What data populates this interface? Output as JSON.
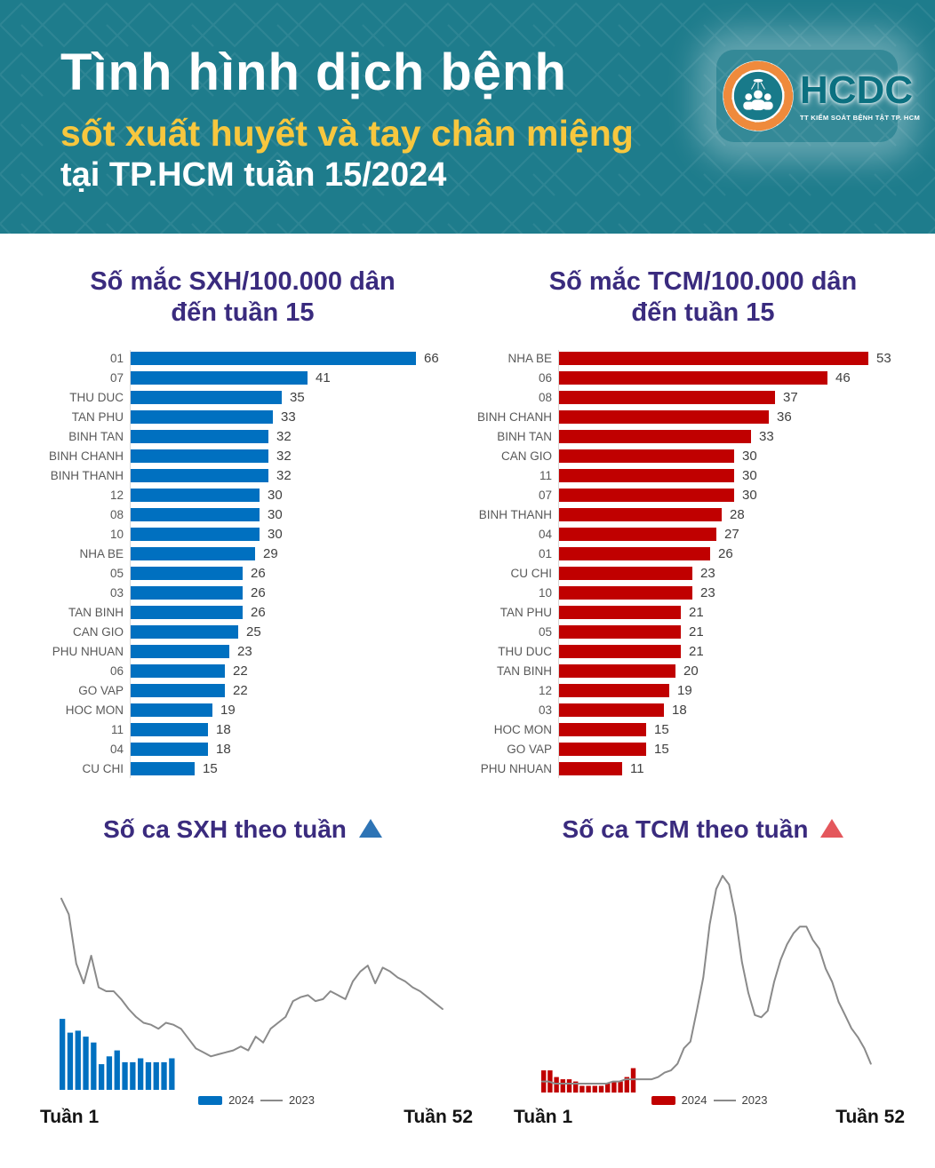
{
  "header": {
    "title": "Tình hình dịch bệnh",
    "subtitle": "sốt xuất huyết và tay chân miệng",
    "subtitle2": "tại TP.HCM tuần 15/2024",
    "logo": {
      "name": "HCDC",
      "tagline": "TT KIỂM SOÁT BỆNH TẬT TP. HCM"
    }
  },
  "colors": {
    "header_teal": "#1E7C8C",
    "header_pattern": "#2E8C9B",
    "accent_yellow": "#F7C73E",
    "title_purple": "#3A2B7E",
    "sxh_blue": "#0070C0",
    "tcm_red": "#C00000",
    "line_gray": "#8A8A8A",
    "triangle_blue": "#2E74B5",
    "triangle_red": "#E4575C",
    "logo_orange": "#EF8A3C"
  },
  "chart_data": [
    {
      "type": "bar",
      "orientation": "horizontal",
      "title": "Số mắc SXH/100.000 dân đến tuần 15",
      "title_line1": "Số mắc SXH/100.000 dân",
      "title_line2": "đến tuần 15",
      "bar_color": "#0070C0",
      "xlim": [
        0,
        66
      ],
      "categories": [
        "01",
        "07",
        "THU DUC",
        "TAN PHU",
        "BINH TAN",
        "BINH CHANH",
        "BINH THANH",
        "12",
        "08",
        "10",
        "NHA BE",
        "05",
        "03",
        "TAN BINH",
        "CAN GIO",
        "PHU NHUAN",
        "06",
        "GO VAP",
        "HOC MON",
        "11",
        "04",
        "CU CHI"
      ],
      "values": [
        66,
        41,
        35,
        33,
        32,
        32,
        32,
        30,
        30,
        30,
        29,
        26,
        26,
        26,
        25,
        23,
        22,
        22,
        19,
        18,
        18,
        15
      ]
    },
    {
      "type": "bar",
      "orientation": "horizontal",
      "title": "Số mắc TCM/100.000 dân đến tuần 15",
      "title_line1": "Số mắc TCM/100.000 dân",
      "title_line2": "đến tuần 15",
      "bar_color": "#C00000",
      "xlim": [
        0,
        53
      ],
      "categories": [
        "NHA BE",
        "06",
        "08",
        "BINH CHANH",
        "BINH TAN",
        "CAN GIO",
        "11",
        "07",
        "BINH THANH",
        "04",
        "01",
        "CU CHI",
        "10",
        "TAN PHU",
        "05",
        "THU DUC",
        "TAN BINH",
        "12",
        "03",
        "HOC MON",
        "GO VAP",
        "PHU NHUAN"
      ],
      "values": [
        53,
        46,
        37,
        36,
        33,
        30,
        30,
        30,
        28,
        27,
        26,
        23,
        23,
        21,
        21,
        21,
        20,
        19,
        18,
        15,
        15,
        11
      ]
    },
    {
      "type": "bar+line",
      "title": "Số ca SXH theo tuần",
      "trend_icon_color": "#2E74B5",
      "bar_color": "#0070C0",
      "line_color": "#8A8A8A",
      "x_start_label": "Tuần 1",
      "x_end_label": "Tuần 52",
      "legend": {
        "bar_label": "2024",
        "line_label": "2023"
      },
      "y_scale": "relative height 0-100, no y-axis shown",
      "series": [
        {
          "name": "2024",
          "type": "bar",
          "weeks": 15,
          "values_relative": [
            36,
            29,
            30,
            27,
            24,
            13,
            17,
            20,
            14,
            14,
            16,
            14,
            14,
            14,
            16
          ]
        },
        {
          "name": "2023",
          "type": "line",
          "weeks": 52,
          "values_relative": [
            97,
            89,
            64,
            54,
            68,
            52,
            50,
            50,
            46,
            41,
            37,
            34,
            33,
            31,
            34,
            33,
            31,
            26,
            21,
            19,
            17,
            18,
            19,
            20,
            22,
            20,
            27,
            24,
            31,
            34,
            37,
            45,
            47,
            48,
            45,
            46,
            50,
            48,
            46,
            55,
            60,
            63,
            54,
            62,
            60,
            57,
            55,
            52,
            50,
            47,
            44,
            41
          ]
        }
      ]
    },
    {
      "type": "bar+line",
      "title": "Số ca TCM theo tuần",
      "trend_icon_color": "#E4575C",
      "bar_color": "#C00000",
      "line_color": "#8A8A8A",
      "x_start_label": "Tuần 1",
      "x_end_label": "Tuần 52",
      "legend": {
        "bar_label": "2024",
        "line_label": "2023"
      },
      "y_scale": "relative height 0-100, no y-axis shown",
      "series": [
        {
          "name": "2024",
          "type": "bar",
          "weeks": 15,
          "values_relative": [
            10,
            10,
            7,
            6,
            6,
            5,
            3,
            3,
            3,
            3,
            4,
            5,
            5,
            7,
            11
          ]
        },
        {
          "name": "2023",
          "type": "line",
          "weeks": 52,
          "values_relative": [
            5,
            5,
            4,
            4,
            4,
            4,
            4,
            4,
            4,
            4,
            4,
            5,
            5,
            6,
            6,
            6,
            6,
            6,
            7,
            9,
            10,
            13,
            20,
            23,
            37,
            52,
            76,
            92,
            98,
            94,
            80,
            59,
            45,
            35,
            34,
            37,
            50,
            60,
            67,
            72,
            75,
            75,
            69,
            65,
            56,
            50,
            41,
            35,
            29,
            25,
            20,
            13
          ]
        }
      ]
    }
  ]
}
